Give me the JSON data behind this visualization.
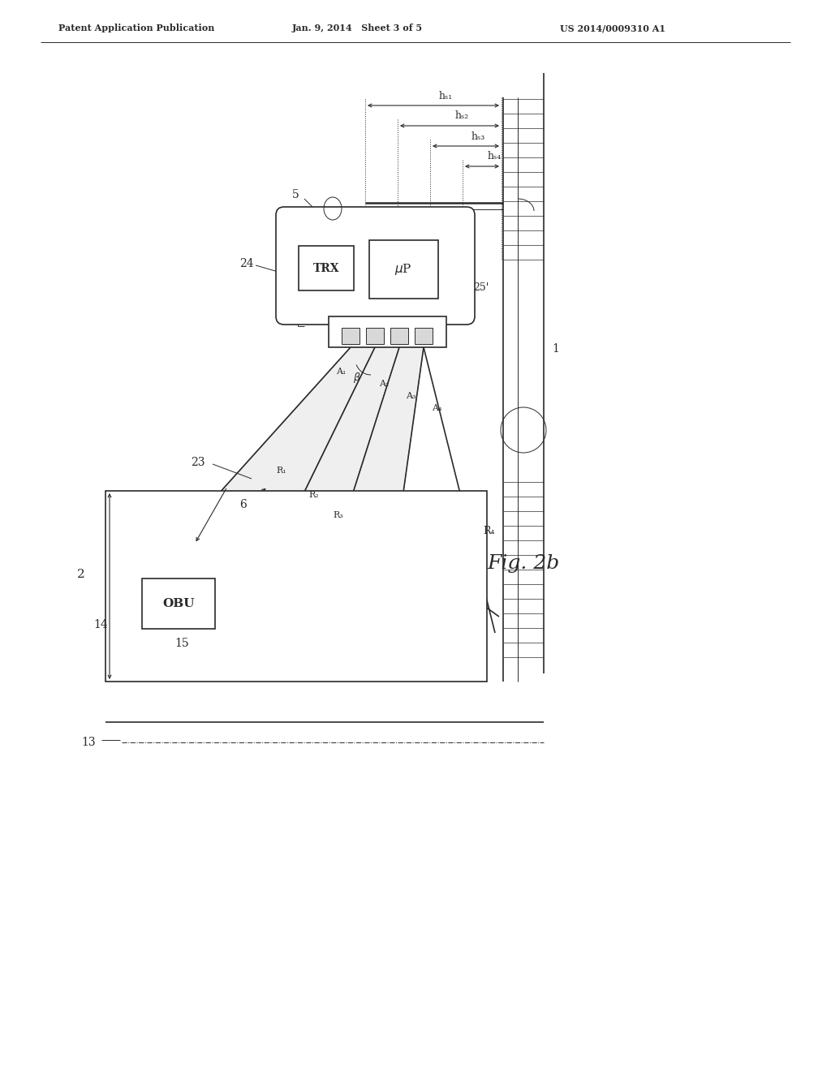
{
  "header_left": "Patent Application Publication",
  "header_mid": "Jan. 9, 2014   Sheet 3 of 5",
  "header_right": "US 2014/0009310 A1",
  "fig_label": "Fig. 2b",
  "bg_color": "#ffffff",
  "line_color": "#2a2a2a"
}
